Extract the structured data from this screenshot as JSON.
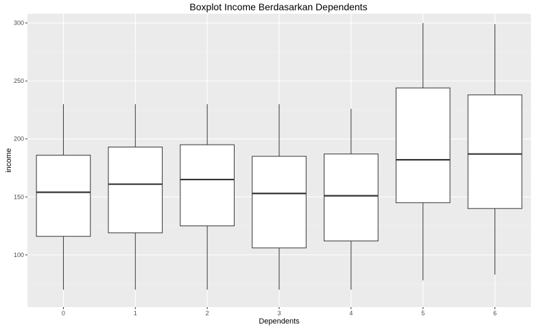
{
  "chart_data": {
    "type": "boxplot",
    "title": "Boxplot Income Berdasarkan Dependents",
    "xlabel": "Dependents",
    "ylabel": "income",
    "categories": [
      "0",
      "1",
      "2",
      "3",
      "4",
      "5",
      "6"
    ],
    "ylim": [
      55,
      308
    ],
    "yticks": [
      100,
      150,
      200,
      250,
      300
    ],
    "grid": true,
    "boxes": [
      {
        "category": "0",
        "min": 70,
        "q1": 116,
        "median": 154,
        "q3": 186,
        "max": 230
      },
      {
        "category": "1",
        "min": 70,
        "q1": 119,
        "median": 161,
        "q3": 193,
        "max": 230
      },
      {
        "category": "2",
        "min": 70,
        "q1": 125,
        "median": 165,
        "q3": 195,
        "max": 230
      },
      {
        "category": "3",
        "min": 70,
        "q1": 106,
        "median": 153,
        "q3": 185,
        "max": 230
      },
      {
        "category": "4",
        "min": 70,
        "q1": 112,
        "median": 151,
        "q3": 187,
        "max": 226
      },
      {
        "category": "5",
        "min": 78,
        "q1": 145,
        "median": 182,
        "q3": 244,
        "max": 300
      },
      {
        "category": "6",
        "min": 83,
        "q1": 140,
        "median": 187,
        "q3": 238,
        "max": 299
      }
    ],
    "colors": {
      "panel": "#ebebeb",
      "grid_major": "#ffffff",
      "grid_minor": "#f5f5f5",
      "box_fill": "#ffffff",
      "box_stroke": "#333333",
      "tick": "#333333"
    }
  }
}
